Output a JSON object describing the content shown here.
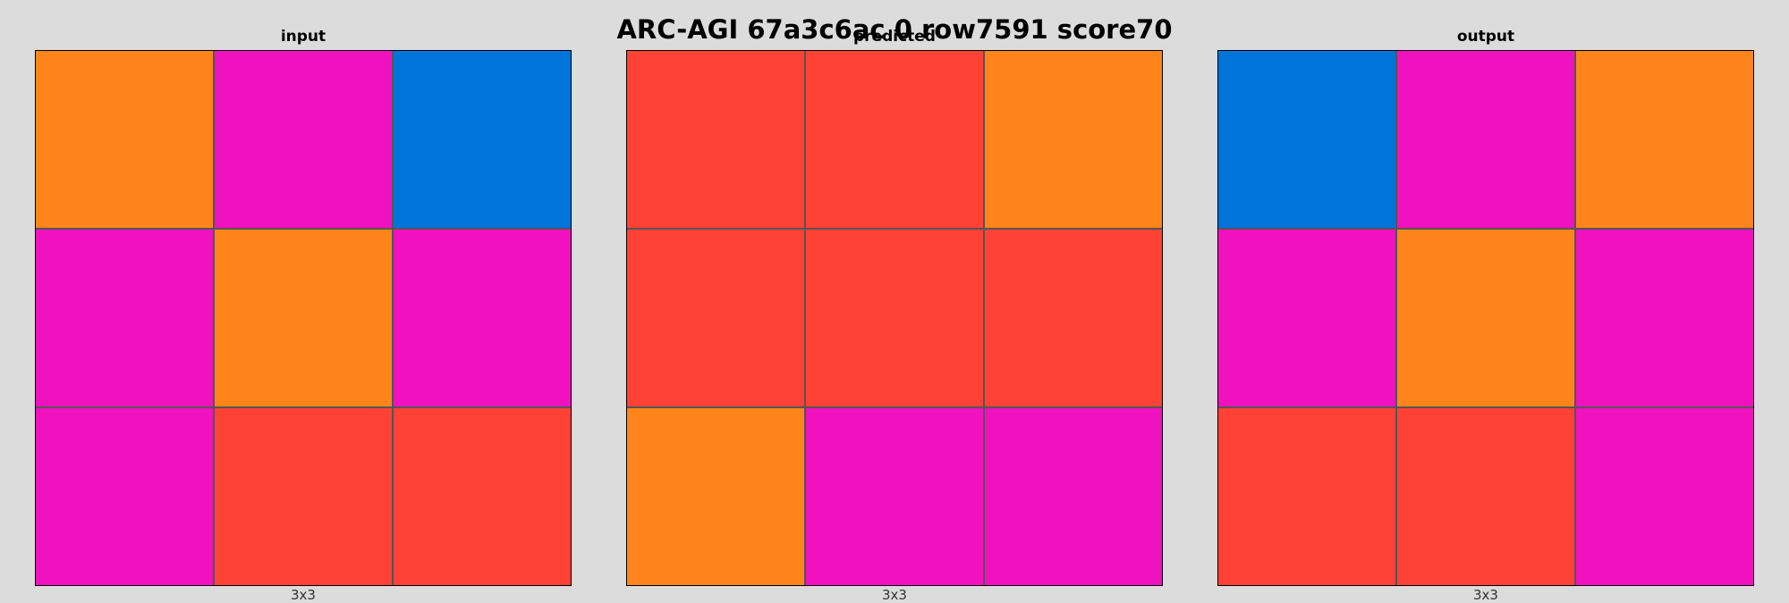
{
  "title": "ARC-AGI 67a3c6ac 0 row7591 score70",
  "palette": {
    "orange": "#FF851B",
    "magenta": "#F012BE",
    "blue": "#0074D9",
    "red": "#FF4136"
  },
  "panels": [
    {
      "label": "input",
      "dims": "3x3",
      "grid": [
        [
          "orange",
          "magenta",
          "blue"
        ],
        [
          "magenta",
          "orange",
          "magenta"
        ],
        [
          "magenta",
          "red",
          "red"
        ]
      ]
    },
    {
      "label": "predicted",
      "dims": "3x3",
      "grid": [
        [
          "red",
          "red",
          "orange"
        ],
        [
          "red",
          "red",
          "red"
        ],
        [
          "orange",
          "magenta",
          "magenta"
        ]
      ]
    },
    {
      "label": "output",
      "dims": "3x3",
      "grid": [
        [
          "blue",
          "magenta",
          "orange"
        ],
        [
          "magenta",
          "orange",
          "magenta"
        ],
        [
          "red",
          "red",
          "magenta"
        ]
      ]
    }
  ]
}
